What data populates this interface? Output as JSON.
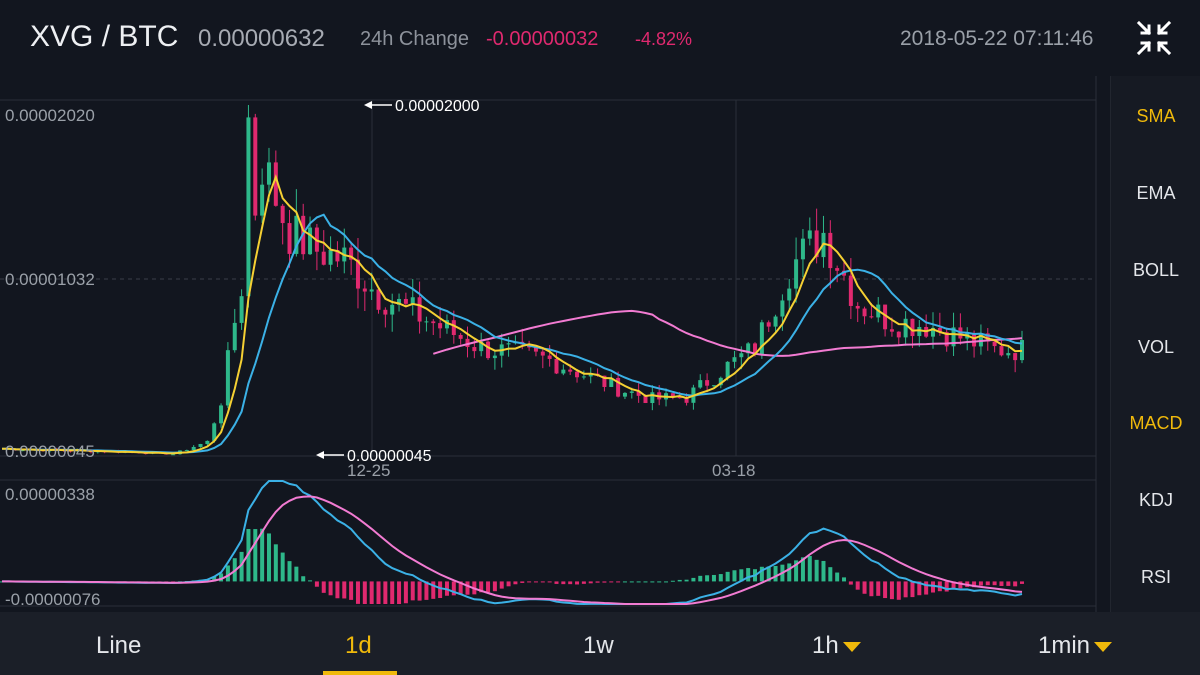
{
  "header": {
    "pair": "XVG / BTC",
    "price": "0.00000632",
    "change_label": "24h Change",
    "change_abs": "-0.00000032",
    "change_pct": "-4.82%",
    "datetime": "2018-05-22 07:11:46",
    "collapse_icon": "collapse-arrows-icon"
  },
  "colors": {
    "up": "#2eb88a",
    "down": "#e0296f",
    "accent": "#f0b90b",
    "ma_fast": "#f5d033",
    "ma_slow": "#3bb1e6",
    "ma_long": "#f27bd2"
  },
  "indicators": [
    {
      "label": "SMA",
      "active": true
    },
    {
      "label": "EMA",
      "active": false
    },
    {
      "label": "BOLL",
      "active": false
    },
    {
      "label": "VOL",
      "active": false
    },
    {
      "label": "MACD",
      "active": true
    },
    {
      "label": "KDJ",
      "active": false
    },
    {
      "label": "RSI",
      "active": false
    }
  ],
  "timeframes": [
    {
      "label": "Line",
      "active": false,
      "dropdown": false
    },
    {
      "label": "1d",
      "active": true,
      "dropdown": false
    },
    {
      "label": "1w",
      "active": false,
      "dropdown": false
    },
    {
      "label": "1h",
      "active": false,
      "dropdown": true
    },
    {
      "label": "1min",
      "active": false,
      "dropdown": true
    }
  ],
  "chart_data": [
    {
      "type": "line",
      "title": "",
      "price_axis_labels": [
        "0.00002020",
        "0.00001032",
        "0.00000045"
      ],
      "x_labels": [
        "12-25",
        "03-18"
      ],
      "annotations": {
        "high": "0.00002000",
        "low": "0.00000045"
      },
      "ylim": [
        4.5e-07,
        2.02e-05
      ],
      "grid": true,
      "x_index": [
        0,
        10,
        20,
        25,
        30,
        32,
        34,
        36,
        38,
        42,
        46,
        50,
        55,
        60,
        65,
        70,
        75,
        80,
        85,
        90,
        95,
        100,
        105,
        110,
        115,
        120,
        125,
        130,
        135,
        140,
        145
      ],
      "close_approx": [
        8e-07,
        7e-07,
        6e-07,
        5e-07,
        1.2e-06,
        3.5e-06,
        8e-06,
        1.2e-05,
        1.7e-05,
        1.3e-05,
        1.2e-05,
        1.15e-05,
        9.5e-06,
        8.5e-06,
        7.5e-06,
        6.5e-06,
        6.2e-06,
        5.8e-06,
        5e-06,
        4.2e-06,
        3.6e-06,
        3.7e-06,
        5.2e-06,
        6.5e-06,
        1.1e-05,
        1.3e-05,
        9e-06,
        8e-06,
        7.8e-06,
        7.1e-06,
        6.4e-06
      ],
      "series": [
        {
          "name": "",
          "color": "#f5d033"
        },
        {
          "name": "",
          "color": "#3bb1e6"
        },
        {
          "name": "",
          "color": "#f27bd2"
        }
      ]
    },
    {
      "type": "bar",
      "title": "",
      "axis_labels": [
        "0.00000338",
        "-0.00000076"
      ],
      "ylim": [
        -7.6e-07,
        3.38e-06
      ]
    }
  ]
}
